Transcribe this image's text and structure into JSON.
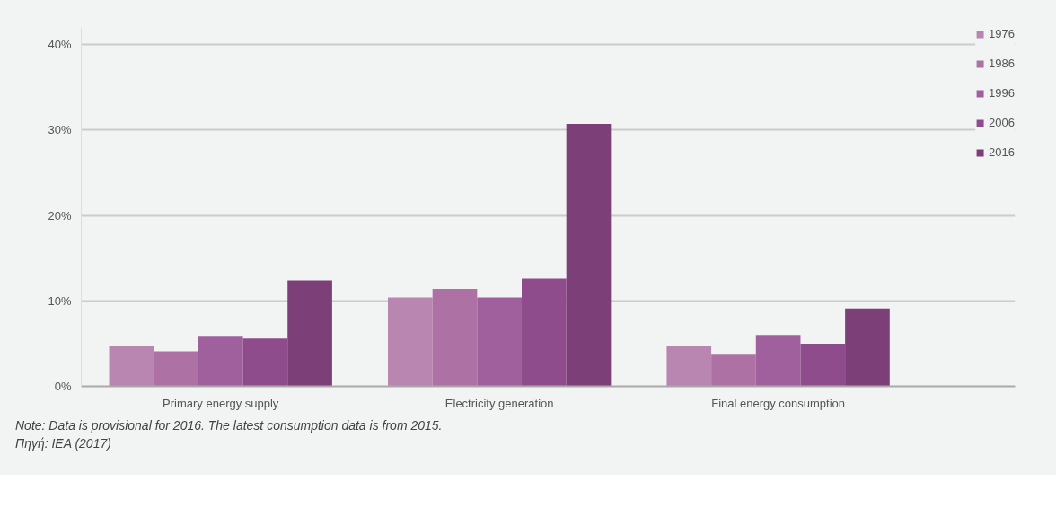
{
  "chart_data": {
    "type": "bar",
    "categories": [
      "Primary energy supply",
      "Electricity generation",
      "Final energy consumption"
    ],
    "series": [
      {
        "name": "1976",
        "color": "#b886b0",
        "values": [
          4.7,
          10.4,
          4.7
        ]
      },
      {
        "name": "1986",
        "color": "#ad72a3",
        "values": [
          4.1,
          11.4,
          3.7
        ]
      },
      {
        "name": "1996",
        "color": "#a0609e",
        "values": [
          5.9,
          10.4,
          6.0
        ]
      },
      {
        "name": "2006",
        "color": "#8f4c8d",
        "values": [
          5.6,
          12.6,
          5.0
        ]
      },
      {
        "name": "2016",
        "color": "#7d3f78",
        "values": [
          12.4,
          30.7,
          9.1
        ]
      }
    ],
    "ylim": [
      0,
      42
    ],
    "yticks": [
      {
        "value": 0,
        "label": "0%"
      },
      {
        "value": 10,
        "label": "10%"
      },
      {
        "value": 20,
        "label": "20%"
      },
      {
        "value": 30,
        "label": "30%"
      },
      {
        "value": 40,
        "label": "40%"
      }
    ],
    "grid": "y",
    "legend": "right",
    "annotations": [
      "Note: Data is provisional for 2016. The latest consumption data is from 2015.",
      "Πηγή: IEA (2017)"
    ]
  }
}
